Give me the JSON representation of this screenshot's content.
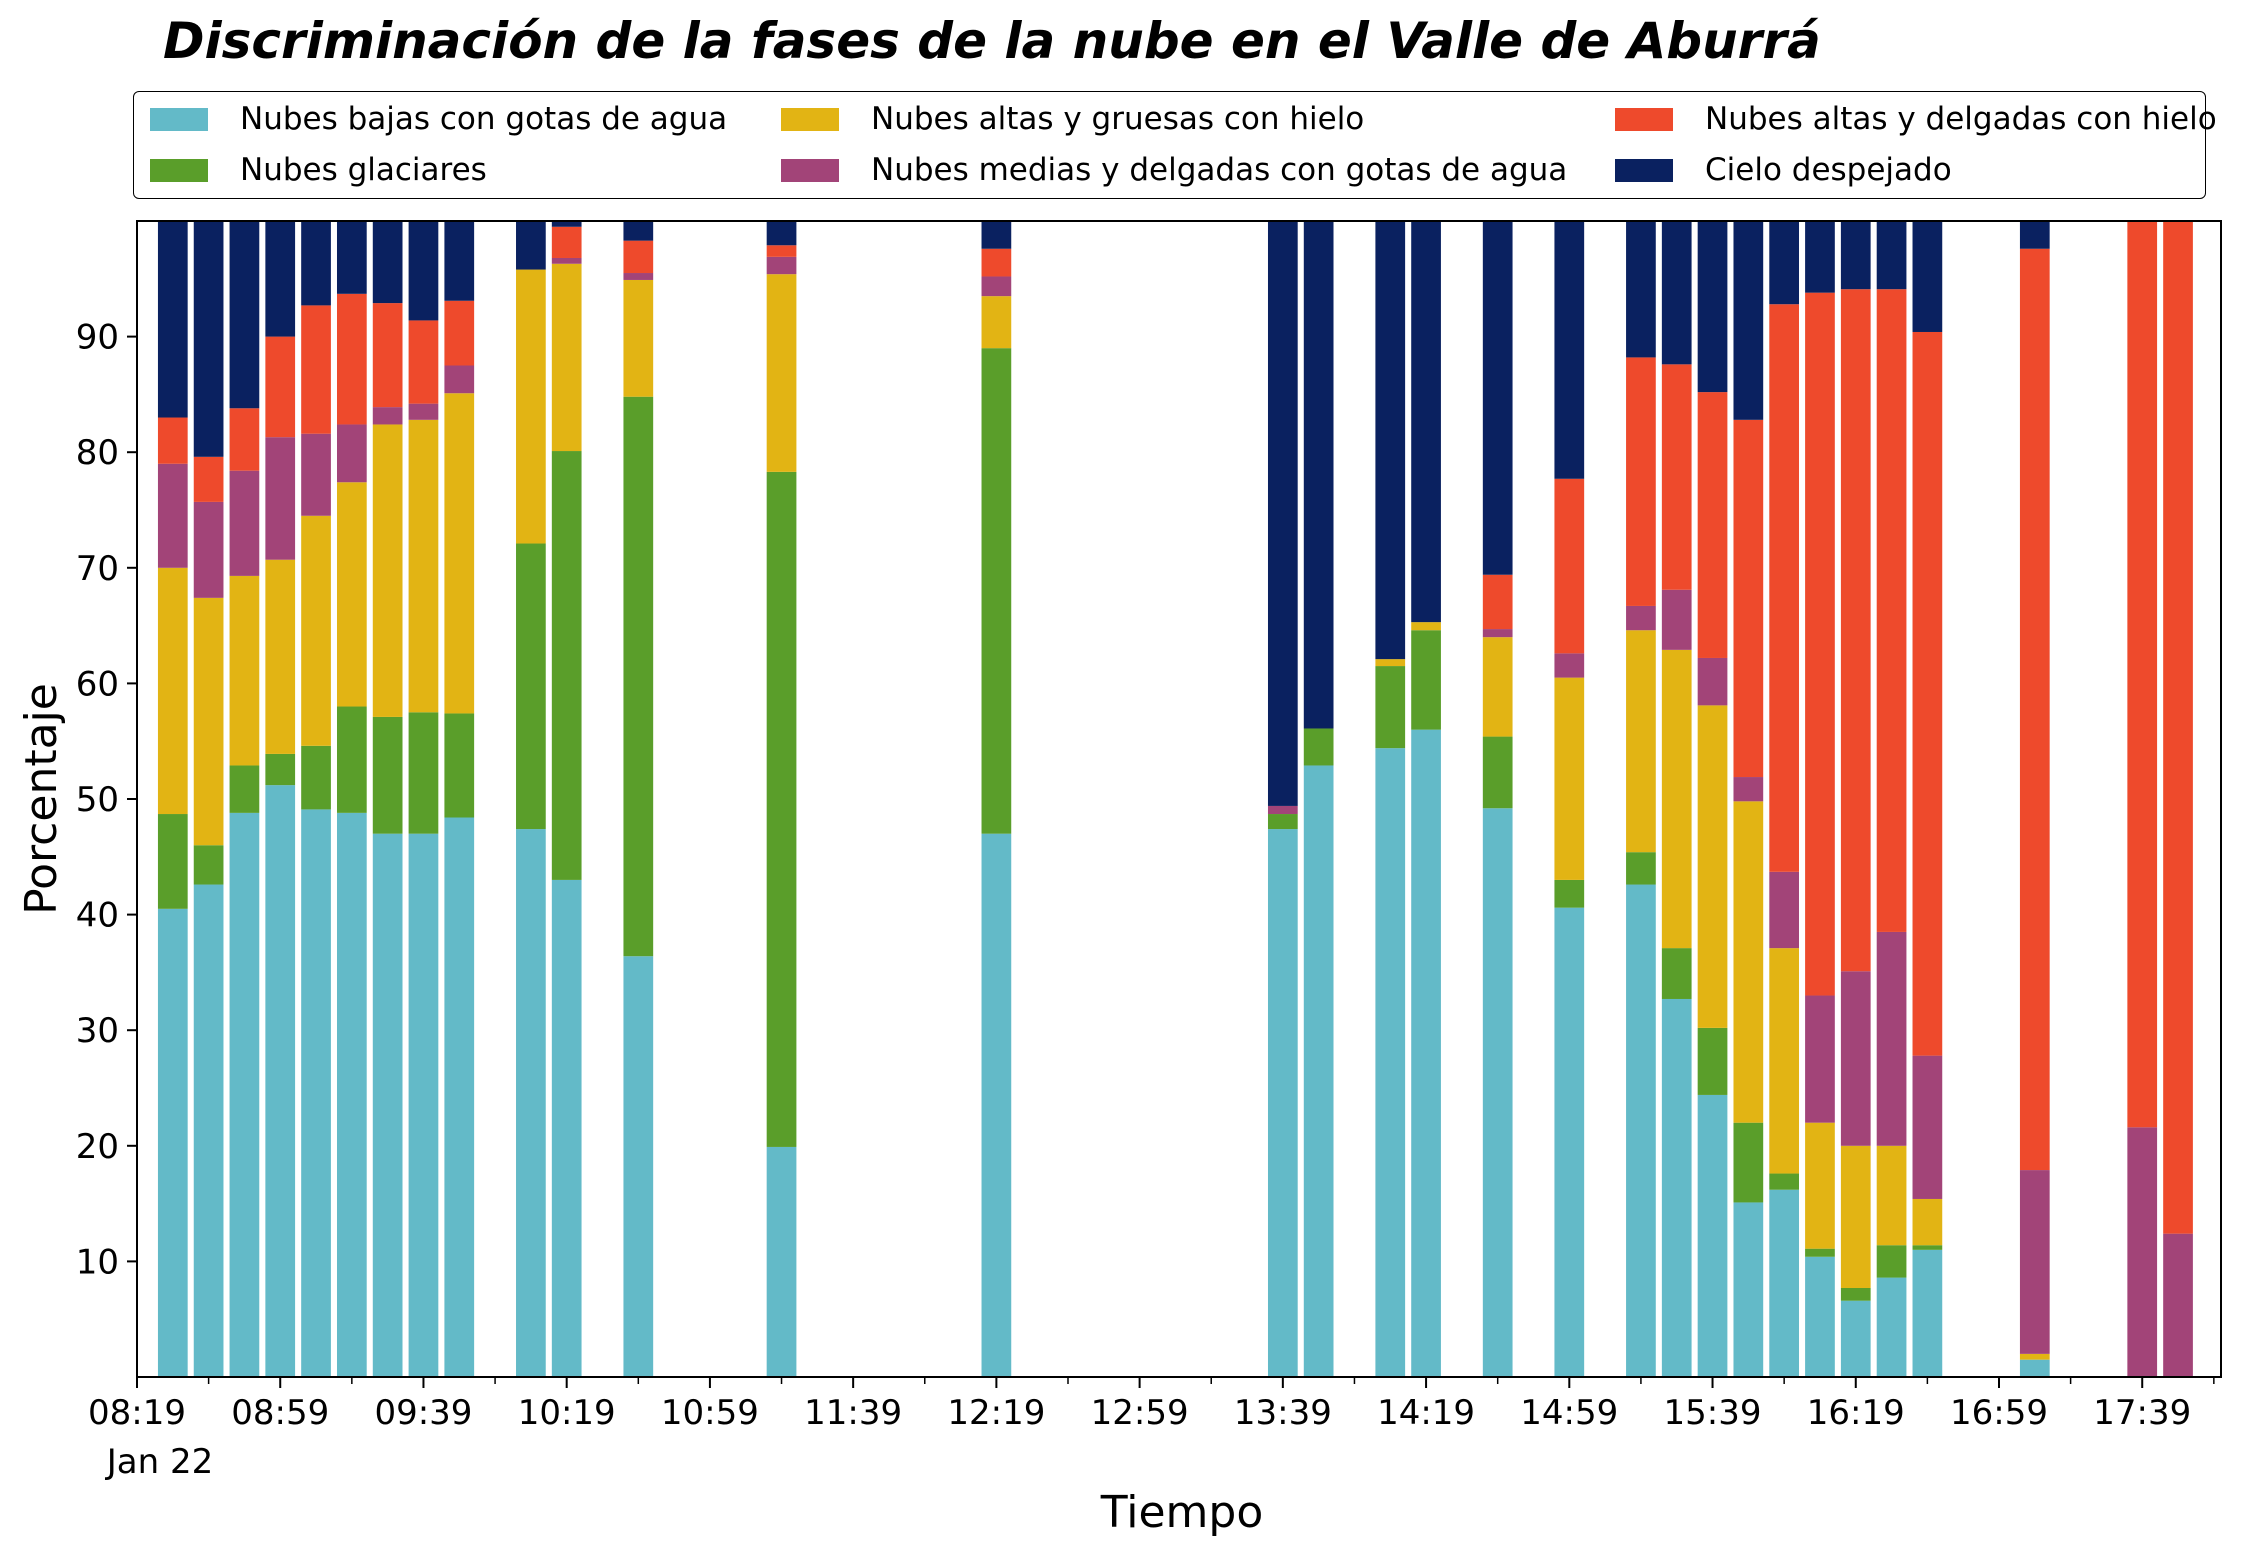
{
  "chart_data": {
    "type": "bar",
    "stacked": true,
    "title": "Discriminación de la fases de la nube en el Valle de Aburrá",
    "xlabel": "Tiempo",
    "ylabel": "Porcentaje",
    "ylim": [
      0,
      100
    ],
    "yticks": [
      10,
      20,
      30,
      40,
      50,
      60,
      70,
      80,
      90
    ],
    "x_time_range": [
      "08:19",
      "18:01"
    ],
    "x_date": "Jan 22",
    "xticks": [
      "08:19",
      "08:59",
      "09:39",
      "10:19",
      "10:59",
      "11:39",
      "12:19",
      "12:59",
      "13:39",
      "14:19",
      "14:59",
      "15:39",
      "16:19",
      "16:59",
      "17:39"
    ],
    "x_minor_tick_interval_min": 20,
    "legend_position": "top",
    "grid": false,
    "series": [
      {
        "name": "Nubes bajas con gotas de agua",
        "color": "#63BAC8"
      },
      {
        "name": "Nubes glaciares",
        "color": "#5A9E2A"
      },
      {
        "name": "Nubes altas y gruesas con hielo",
        "color": "#E2B414"
      },
      {
        "name": "Nubes medias y delgadas con gotas de agua",
        "color": "#A24478"
      },
      {
        "name": "Nubes altas y delgadas con hielo",
        "color": "#EE4A2C"
      },
      {
        "name": "Cielo despejado",
        "color": "#0A2160"
      }
    ],
    "bars": [
      {
        "time": "08:29",
        "values": [
          40.5,
          8.2,
          21.3,
          9.0,
          4.0,
          17.0
        ]
      },
      {
        "time": "08:39",
        "values": [
          42.6,
          3.4,
          21.4,
          8.3,
          3.9,
          20.4
        ]
      },
      {
        "time": "08:49",
        "values": [
          48.8,
          4.1,
          16.4,
          9.1,
          5.4,
          16.2
        ]
      },
      {
        "time": "08:59",
        "values": [
          51.2,
          2.7,
          16.8,
          10.6,
          8.7,
          10.0
        ]
      },
      {
        "time": "09:09",
        "values": [
          49.1,
          5.5,
          19.9,
          7.1,
          11.1,
          7.3
        ]
      },
      {
        "time": "09:19",
        "values": [
          48.8,
          9.2,
          19.4,
          5.0,
          11.3,
          6.3
        ]
      },
      {
        "time": "09:29",
        "values": [
          47.0,
          10.1,
          25.3,
          1.5,
          9.0,
          7.1
        ]
      },
      {
        "time": "09:39",
        "values": [
          47.0,
          10.5,
          25.3,
          1.4,
          7.2,
          8.6
        ]
      },
      {
        "time": "09:49",
        "values": [
          48.4,
          9.0,
          27.7,
          2.4,
          5.6,
          6.9
        ]
      },
      {
        "time": "10:09",
        "values": [
          47.4,
          24.7,
          23.7,
          0,
          0,
          4.2
        ]
      },
      {
        "time": "10:19",
        "values": [
          43.0,
          37.1,
          16.2,
          0.5,
          2.7,
          0.5
        ]
      },
      {
        "time": "10:39",
        "values": [
          36.4,
          48.4,
          10.1,
          0.6,
          2.8,
          1.7
        ]
      },
      {
        "time": "11:19",
        "values": [
          19.9,
          58.4,
          17.1,
          1.5,
          1.0,
          2.1
        ]
      },
      {
        "time": "12:19",
        "values": [
          47.0,
          42.0,
          4.5,
          1.7,
          2.4,
          2.4
        ]
      },
      {
        "time": "13:39",
        "values": [
          47.4,
          1.3,
          0,
          0.7,
          0,
          50.6
        ]
      },
      {
        "time": "13:49",
        "values": [
          52.9,
          3.2,
          0,
          0,
          0,
          43.9
        ]
      },
      {
        "time": "14:09",
        "values": [
          54.4,
          7.1,
          0.6,
          0,
          0,
          37.9
        ]
      },
      {
        "time": "14:19",
        "values": [
          56.0,
          8.6,
          0.7,
          0,
          0,
          34.7
        ]
      },
      {
        "time": "14:39",
        "values": [
          49.2,
          6.2,
          8.6,
          0.7,
          4.7,
          30.6
        ]
      },
      {
        "time": "14:59",
        "values": [
          40.6,
          2.4,
          17.5,
          2.1,
          15.1,
          22.3
        ]
      },
      {
        "time": "15:19",
        "values": [
          42.6,
          2.8,
          19.2,
          2.1,
          21.5,
          11.8
        ]
      },
      {
        "time": "15:29",
        "values": [
          32.7,
          4.4,
          25.8,
          5.2,
          19.5,
          12.4
        ]
      },
      {
        "time": "15:39",
        "values": [
          24.4,
          5.8,
          27.9,
          4.1,
          23.0,
          14.8
        ]
      },
      {
        "time": "15:49",
        "values": [
          15.1,
          6.9,
          27.8,
          2.1,
          30.9,
          17.2
        ]
      },
      {
        "time": "15:59",
        "values": [
          16.2,
          1.4,
          19.5,
          6.6,
          49.1,
          7.2
        ]
      },
      {
        "time": "16:09",
        "values": [
          10.4,
          0.7,
          10.9,
          11.0,
          60.8,
          6.2
        ]
      },
      {
        "time": "16:19",
        "values": [
          6.6,
          1.1,
          12.3,
          15.1,
          59.0,
          5.9
        ]
      },
      {
        "time": "16:29",
        "values": [
          8.6,
          2.8,
          8.6,
          18.5,
          55.6,
          5.9
        ]
      },
      {
        "time": "16:39",
        "values": [
          11.0,
          0.4,
          4.0,
          12.4,
          62.6,
          9.6
        ]
      },
      {
        "time": "17:09",
        "values": [
          1.5,
          0,
          0.5,
          15.9,
          79.7,
          2.4
        ]
      },
      {
        "time": "17:39",
        "values": [
          0,
          0,
          0,
          21.6,
          78.4,
          0
        ]
      },
      {
        "time": "17:49",
        "values": [
          0,
          0,
          0,
          12.4,
          87.6,
          0
        ]
      }
    ]
  }
}
